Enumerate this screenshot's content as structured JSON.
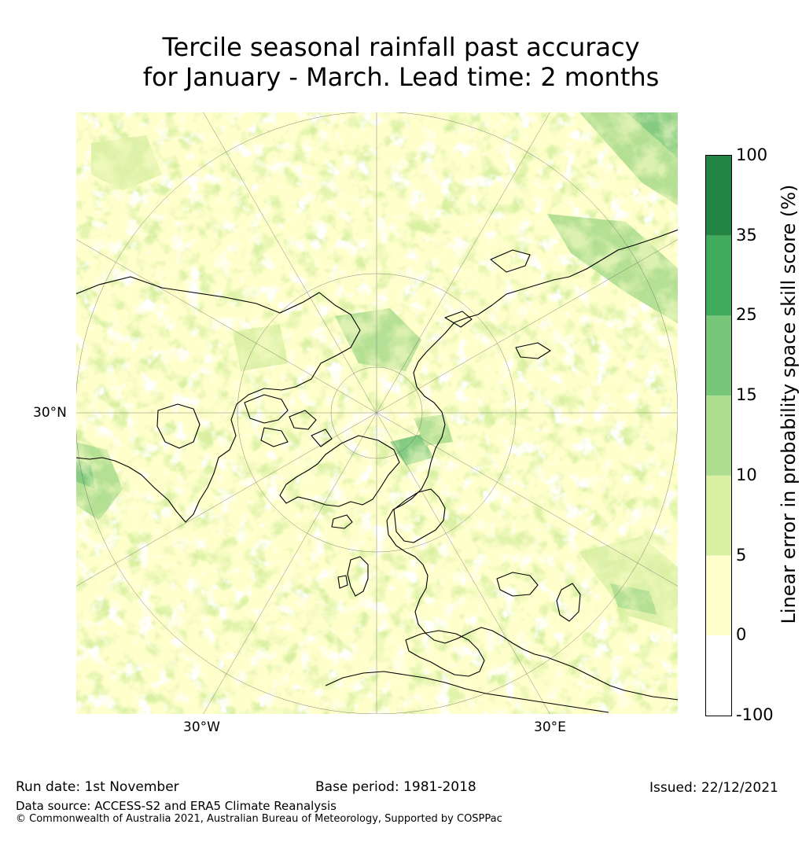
{
  "title": {
    "line1": "Tercile seasonal rainfall past accuracy",
    "line2": "for January - March. Lead time: 2 months"
  },
  "map": {
    "projection": "north polar stereographic",
    "labels": {
      "lat_30n": "30°N",
      "lon_30w": "30°W",
      "lon_30e": "30°E"
    }
  },
  "colorbar": {
    "label": "Linear error in probability space skill score (%)",
    "ticks": [
      "100",
      "35",
      "25",
      "15",
      "10",
      "5",
      "0",
      "-100"
    ],
    "bands": [
      {
        "from": -100,
        "to": 0,
        "color": "#ffffff"
      },
      {
        "from": 0,
        "to": 5,
        "color": "#ffffcc"
      },
      {
        "from": 5,
        "to": 10,
        "color": "#d9f0a3"
      },
      {
        "from": 10,
        "to": 15,
        "color": "#addd8e"
      },
      {
        "from": 15,
        "to": 25,
        "color": "#78c679"
      },
      {
        "from": 25,
        "to": 35,
        "color": "#41ab5d"
      },
      {
        "from": 35,
        "to": 100,
        "color": "#238443"
      }
    ]
  },
  "footer": {
    "run_date": "Run date: 1st November",
    "base_period": "Base period: 1981-2018",
    "issued": "Issued: 22/12/2021",
    "data_source": "Data source: ACCESS-S2 and ERA5 Climate Reanalysis",
    "copyright": "© Commonwealth of Australia 2021, Australian Bureau of Meteorology, Supported by COSPPac"
  }
}
